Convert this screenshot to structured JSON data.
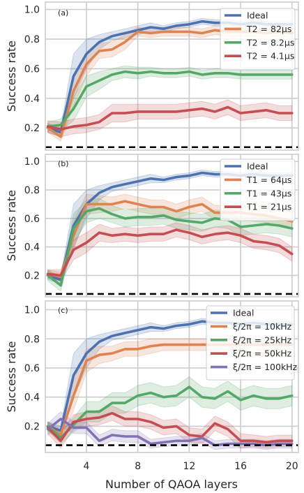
{
  "figure": {
    "xlabel": "Number of QAOA layers",
    "x_ticks": [
      4,
      8,
      12,
      16,
      20
    ],
    "xlim": [
      0.8,
      20.5
    ]
  },
  "chart_data": [
    {
      "type": "line",
      "panel_label": "(a)",
      "ylabel": "Success rate",
      "ylim": [
        0.05,
        1.05
      ],
      "y_ticks": [
        0.2,
        0.4,
        0.6,
        0.8,
        1.0
      ],
      "y_tick_labels": [
        "0.2",
        "0.4",
        "0.6",
        "0.8",
        "1.0"
      ],
      "grid": true,
      "legend_position": "top-right",
      "baseline": 0.07,
      "x": [
        1,
        2,
        3,
        4,
        5,
        6,
        7,
        8,
        9,
        10,
        11,
        12,
        13,
        14,
        15,
        16,
        17,
        18,
        19,
        20
      ],
      "series": [
        {
          "name": "Ideal",
          "color": "#4c72b0",
          "values": [
            0.2,
            0.17,
            0.55,
            0.7,
            0.78,
            0.82,
            0.84,
            0.86,
            0.88,
            0.87,
            0.89,
            0.9,
            0.92,
            0.91,
            0.91,
            0.9,
            0.91,
            0.9,
            0.9,
            0.9
          ],
          "band": [
            0.03,
            0.03,
            0.15,
            0.1,
            0.05,
            0.03,
            0.03,
            0.03,
            0.03,
            0.02,
            0.02,
            0.02,
            0.02,
            0.02,
            0.02,
            0.02,
            0.02,
            0.02,
            0.02,
            0.02
          ]
        },
        {
          "name": "T2 = 82μs",
          "color": "#dd8452",
          "values": [
            0.2,
            0.14,
            0.45,
            0.63,
            0.72,
            0.73,
            0.78,
            0.85,
            0.84,
            0.85,
            0.85,
            0.85,
            0.84,
            0.86,
            0.85,
            0.85,
            0.85,
            0.84,
            0.85,
            0.84
          ],
          "band": [
            0.03,
            0.03,
            0.1,
            0.08,
            0.05,
            0.05,
            0.05,
            0.03,
            0.03,
            0.03,
            0.03,
            0.03,
            0.03,
            0.03,
            0.03,
            0.03,
            0.03,
            0.03,
            0.03,
            0.03
          ]
        },
        {
          "name": "T2 = 8.2μs",
          "color": "#55a868",
          "values": [
            0.21,
            0.22,
            0.33,
            0.48,
            0.52,
            0.56,
            0.58,
            0.57,
            0.58,
            0.57,
            0.57,
            0.58,
            0.56,
            0.57,
            0.57,
            0.56,
            0.56,
            0.56,
            0.56,
            0.56
          ],
          "band": [
            0.03,
            0.04,
            0.08,
            0.07,
            0.06,
            0.04,
            0.04,
            0.04,
            0.03,
            0.03,
            0.03,
            0.03,
            0.03,
            0.03,
            0.03,
            0.03,
            0.03,
            0.03,
            0.03,
            0.03
          ]
        },
        {
          "name": "T2 = 4.1μs",
          "color": "#c44e52",
          "values": [
            0.21,
            0.19,
            0.21,
            0.22,
            0.24,
            0.3,
            0.3,
            0.31,
            0.31,
            0.31,
            0.31,
            0.32,
            0.33,
            0.31,
            0.34,
            0.3,
            0.31,
            0.32,
            0.3,
            0.3
          ],
          "band": [
            0.04,
            0.05,
            0.05,
            0.05,
            0.05,
            0.06,
            0.06,
            0.05,
            0.05,
            0.05,
            0.05,
            0.05,
            0.05,
            0.05,
            0.05,
            0.05,
            0.05,
            0.05,
            0.05,
            0.05
          ]
        }
      ]
    },
    {
      "type": "line",
      "panel_label": "(b)",
      "ylabel": "Success rate",
      "ylim": [
        0.05,
        1.05
      ],
      "y_ticks": [
        0.2,
        0.4,
        0.6,
        0.8,
        1.0
      ],
      "y_tick_labels": [
        "0.2",
        "0.4",
        "0.6",
        "0.8",
        "1.0"
      ],
      "grid": true,
      "legend_position": "top-right",
      "baseline": 0.07,
      "x": [
        1,
        2,
        3,
        4,
        5,
        6,
        7,
        8,
        9,
        10,
        11,
        12,
        13,
        14,
        15,
        16,
        17,
        18,
        19,
        20
      ],
      "series": [
        {
          "name": "Ideal",
          "color": "#4c72b0",
          "values": [
            0.2,
            0.17,
            0.55,
            0.7,
            0.78,
            0.82,
            0.84,
            0.86,
            0.88,
            0.87,
            0.89,
            0.9,
            0.92,
            0.91,
            0.91,
            0.9,
            0.91,
            0.9,
            0.9,
            0.9
          ],
          "band": [
            0.03,
            0.03,
            0.15,
            0.1,
            0.05,
            0.03,
            0.03,
            0.03,
            0.03,
            0.02,
            0.02,
            0.02,
            0.02,
            0.02,
            0.02,
            0.02,
            0.02,
            0.02,
            0.02,
            0.02
          ]
        },
        {
          "name": "T1 = 64μs",
          "color": "#dd8452",
          "values": [
            0.21,
            0.19,
            0.48,
            0.7,
            0.7,
            0.7,
            0.72,
            0.7,
            0.68,
            0.68,
            0.65,
            0.68,
            0.7,
            0.64,
            0.64,
            0.64,
            0.63,
            0.62,
            0.6,
            0.58
          ],
          "band": [
            0.03,
            0.03,
            0.1,
            0.07,
            0.06,
            0.05,
            0.05,
            0.05,
            0.05,
            0.05,
            0.05,
            0.05,
            0.05,
            0.05,
            0.05,
            0.05,
            0.05,
            0.05,
            0.05,
            0.05
          ]
        },
        {
          "name": "T1 = 43μs",
          "color": "#55a868",
          "values": [
            0.2,
            0.13,
            0.53,
            0.65,
            0.67,
            0.63,
            0.6,
            0.61,
            0.61,
            0.62,
            0.59,
            0.58,
            0.57,
            0.6,
            0.59,
            0.54,
            0.55,
            0.56,
            0.55,
            0.53
          ],
          "band": [
            0.04,
            0.04,
            0.1,
            0.08,
            0.07,
            0.06,
            0.06,
            0.06,
            0.06,
            0.06,
            0.06,
            0.06,
            0.06,
            0.06,
            0.06,
            0.06,
            0.06,
            0.06,
            0.06,
            0.06
          ]
        },
        {
          "name": "T1 = 21μs",
          "color": "#c44e52",
          "values": [
            0.21,
            0.2,
            0.38,
            0.43,
            0.5,
            0.48,
            0.49,
            0.48,
            0.49,
            0.49,
            0.52,
            0.5,
            0.47,
            0.49,
            0.5,
            0.48,
            0.44,
            0.43,
            0.41,
            0.35
          ],
          "band": [
            0.03,
            0.04,
            0.07,
            0.07,
            0.06,
            0.05,
            0.05,
            0.05,
            0.05,
            0.05,
            0.05,
            0.05,
            0.05,
            0.05,
            0.05,
            0.05,
            0.05,
            0.05,
            0.05,
            0.05
          ]
        }
      ]
    },
    {
      "type": "line",
      "panel_label": "(c)",
      "ylabel": "Success rate",
      "ylim": [
        0.02,
        1.06
      ],
      "y_ticks": [
        0.2,
        0.4,
        0.6,
        0.8,
        1.0
      ],
      "y_tick_labels": [
        "0.2",
        "0.4",
        "0.6",
        "0.8",
        "1.0"
      ],
      "grid": true,
      "legend_position": "top-right",
      "baseline": 0.07,
      "x": [
        1,
        2,
        3,
        4,
        5,
        6,
        7,
        8,
        9,
        10,
        11,
        12,
        13,
        14,
        15,
        16,
        17,
        18,
        19,
        20
      ],
      "series": [
        {
          "name": "Ideal",
          "color": "#4c72b0",
          "values": [
            0.2,
            0.17,
            0.55,
            0.7,
            0.78,
            0.82,
            0.84,
            0.86,
            0.88,
            0.87,
            0.89,
            0.9,
            0.92,
            0.91,
            0.91,
            0.9,
            0.91,
            0.9,
            0.9,
            0.9
          ],
          "band": [
            0.03,
            0.03,
            0.15,
            0.1,
            0.05,
            0.03,
            0.03,
            0.03,
            0.03,
            0.02,
            0.02,
            0.02,
            0.02,
            0.02,
            0.02,
            0.02,
            0.02,
            0.02,
            0.02,
            0.02
          ]
        },
        {
          "name": "ξ/2π = 10kHz",
          "color": "#dd8452",
          "values": [
            0.2,
            0.14,
            0.41,
            0.65,
            0.69,
            0.7,
            0.73,
            0.73,
            0.75,
            0.76,
            0.76,
            0.76,
            0.76,
            0.76,
            0.76,
            0.76,
            0.76,
            0.76,
            0.76,
            0.76
          ],
          "band": [
            0.03,
            0.04,
            0.1,
            0.08,
            0.06,
            0.05,
            0.05,
            0.05,
            0.05,
            0.04,
            0.04,
            0.04,
            0.04,
            0.04,
            0.04,
            0.04,
            0.04,
            0.04,
            0.04,
            0.04
          ]
        },
        {
          "name": "ξ/2π = 25kHz",
          "color": "#55a868",
          "values": [
            0.2,
            0.12,
            0.21,
            0.3,
            0.3,
            0.36,
            0.36,
            0.41,
            0.43,
            0.4,
            0.41,
            0.47,
            0.4,
            0.39,
            0.44,
            0.38,
            0.41,
            0.39,
            0.39,
            0.41
          ],
          "band": [
            0.03,
            0.04,
            0.05,
            0.07,
            0.07,
            0.07,
            0.07,
            0.07,
            0.07,
            0.07,
            0.07,
            0.07,
            0.07,
            0.07,
            0.07,
            0.07,
            0.07,
            0.07,
            0.07,
            0.07
          ]
        },
        {
          "name": "ξ/2π = 50kHz",
          "color": "#c44e52",
          "values": [
            0.19,
            0.1,
            0.23,
            0.25,
            0.26,
            0.29,
            0.25,
            0.25,
            0.23,
            0.19,
            0.2,
            0.14,
            0.13,
            0.22,
            0.18,
            0.1,
            0.1,
            0.09,
            0.1,
            0.1
          ],
          "band": [
            0.04,
            0.05,
            0.05,
            0.05,
            0.05,
            0.05,
            0.05,
            0.05,
            0.05,
            0.05,
            0.05,
            0.05,
            0.05,
            0.05,
            0.05,
            0.05,
            0.04,
            0.04,
            0.04,
            0.04
          ]
        },
        {
          "name": "ξ/2π = 100kHz",
          "color": "#8172b2",
          "values": [
            0.18,
            0.25,
            0.19,
            0.19,
            0.1,
            0.14,
            0.13,
            0.13,
            0.08,
            0.09,
            0.1,
            0.1,
            0.12,
            0.07,
            0.08,
            0.08,
            0.08,
            0.07,
            0.08,
            0.08
          ],
          "band": [
            0.04,
            0.05,
            0.04,
            0.04,
            0.04,
            0.04,
            0.04,
            0.04,
            0.03,
            0.03,
            0.03,
            0.03,
            0.03,
            0.03,
            0.03,
            0.03,
            0.03,
            0.03,
            0.03,
            0.03
          ]
        }
      ]
    }
  ]
}
